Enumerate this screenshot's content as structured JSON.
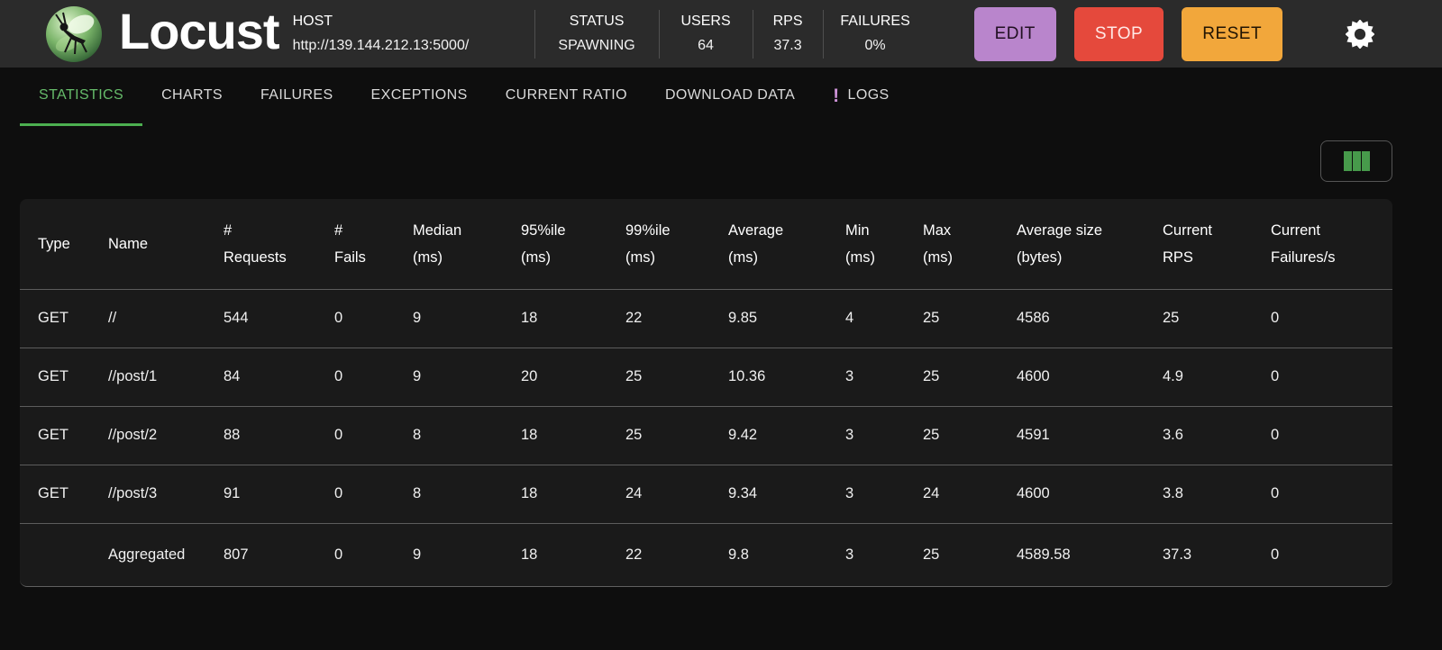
{
  "app": {
    "title": "Locust"
  },
  "header": {
    "stats": [
      {
        "id": "host",
        "label": "HOST",
        "value": "http://139.144.212.13:5000/"
      },
      {
        "id": "status",
        "label": "STATUS",
        "value": "SPAWNING"
      },
      {
        "id": "users",
        "label": "USERS",
        "value": "64"
      },
      {
        "id": "rps",
        "label": "RPS",
        "value": "37.3"
      },
      {
        "id": "failures",
        "label": "FAILURES",
        "value": "0%"
      }
    ],
    "buttons": [
      {
        "id": "edit",
        "label": "EDIT",
        "bg": "#b985cc",
        "fg": "#211022"
      },
      {
        "id": "stop",
        "label": "STOP",
        "bg": "#e5493c",
        "fg": "#ffe9e6"
      },
      {
        "id": "reset",
        "label": "RESET",
        "bg": "#f2a73b",
        "fg": "#211403"
      }
    ],
    "settings_icon": "gear-icon"
  },
  "tabs": [
    {
      "label": "STATISTICS",
      "active": true
    },
    {
      "label": "CHARTS",
      "active": false
    },
    {
      "label": "FAILURES",
      "active": false
    },
    {
      "label": "EXCEPTIONS",
      "active": false
    },
    {
      "label": "CURRENT RATIO",
      "active": false
    },
    {
      "label": "DOWNLOAD DATA",
      "active": false
    },
    {
      "label": "LOGS",
      "active": false,
      "badge": "!"
    }
  ],
  "toolbar": {
    "column_selector_icon": "view-columns-icon"
  },
  "colors": {
    "accent_green": "#4caf50",
    "tab_active_green": "#66bb6a",
    "badge_purple": "#ce93d8",
    "edit_purple": "#b985cc",
    "stop_red": "#e5493c",
    "reset_orange": "#f2a73b",
    "header_bg": "#2b2b2b",
    "body_bg": "#0e0e0e",
    "panel_bg": "#1a1a1a"
  },
  "statistics_table": {
    "columns": [
      "Type",
      "Name",
      "#\nRequests",
      "#\nFails",
      "Median\n(ms)",
      "95%ile\n(ms)",
      "99%ile\n(ms)",
      "Average\n(ms)",
      "Min\n(ms)",
      "Max\n(ms)",
      "Average size\n(bytes)",
      "Current\nRPS",
      "Current\nFailures/s"
    ],
    "rows": [
      [
        "GET",
        "//",
        "544",
        "0",
        "9",
        "18",
        "22",
        "9.85",
        "4",
        "25",
        "4586",
        "25",
        "0"
      ],
      [
        "GET",
        "//post/1",
        "84",
        "0",
        "9",
        "20",
        "25",
        "10.36",
        "3",
        "25",
        "4600",
        "4.9",
        "0"
      ],
      [
        "GET",
        "//post/2",
        "88",
        "0",
        "8",
        "18",
        "25",
        "9.42",
        "3",
        "25",
        "4591",
        "3.6",
        "0"
      ],
      [
        "GET",
        "//post/3",
        "91",
        "0",
        "8",
        "18",
        "24",
        "9.34",
        "3",
        "24",
        "4600",
        "3.8",
        "0"
      ],
      [
        "",
        "Aggregated",
        "807",
        "0",
        "9",
        "18",
        "22",
        "9.8",
        "3",
        "25",
        "4589.58",
        "37.3",
        "0"
      ]
    ]
  }
}
